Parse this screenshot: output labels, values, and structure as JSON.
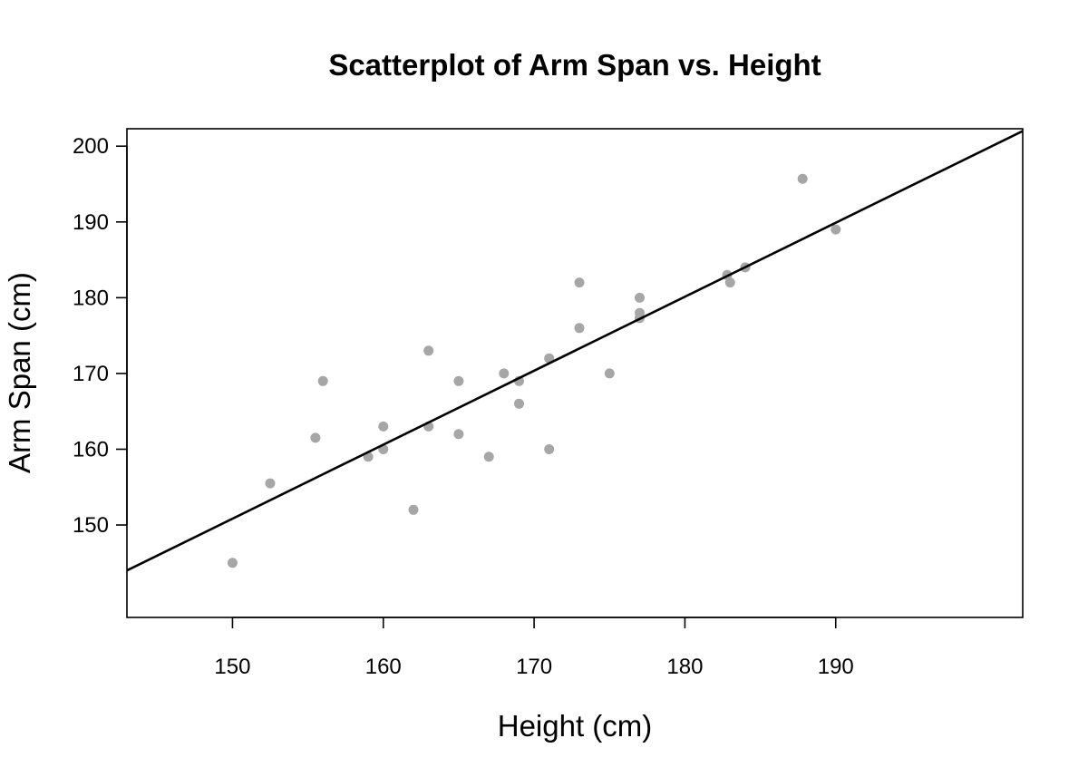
{
  "chart_data": {
    "type": "scatter",
    "title": "Scatterplot of Arm Span vs. Height",
    "xlabel": "Height (cm)",
    "ylabel": "Arm Span (cm)",
    "xlim": [
      143,
      202.4
    ],
    "ylim": [
      137.8,
      202.3
    ],
    "xticks": [
      150,
      160,
      170,
      180,
      190
    ],
    "yticks": [
      150,
      160,
      170,
      180,
      190,
      200
    ],
    "grid": false,
    "legend": "none",
    "point_color": "#a6a6a6",
    "line_color": "#000000",
    "points": [
      {
        "x": 150,
        "y": 145
      },
      {
        "x": 152.5,
        "y": 155.5
      },
      {
        "x": 155.5,
        "y": 161.5
      },
      {
        "x": 156,
        "y": 169
      },
      {
        "x": 159,
        "y": 159
      },
      {
        "x": 160,
        "y": 163
      },
      {
        "x": 160,
        "y": 160
      },
      {
        "x": 162,
        "y": 152
      },
      {
        "x": 163,
        "y": 173
      },
      {
        "x": 163,
        "y": 163
      },
      {
        "x": 165,
        "y": 169
      },
      {
        "x": 165,
        "y": 162
      },
      {
        "x": 167,
        "y": 159
      },
      {
        "x": 168,
        "y": 170
      },
      {
        "x": 169,
        "y": 169
      },
      {
        "x": 169,
        "y": 166
      },
      {
        "x": 171,
        "y": 172
      },
      {
        "x": 171,
        "y": 160
      },
      {
        "x": 173,
        "y": 182
      },
      {
        "x": 173,
        "y": 176
      },
      {
        "x": 175,
        "y": 170
      },
      {
        "x": 177,
        "y": 180
      },
      {
        "x": 177,
        "y": 178
      },
      {
        "x": 177,
        "y": 177.3
      },
      {
        "x": 182.8,
        "y": 183
      },
      {
        "x": 183,
        "y": 182
      },
      {
        "x": 184,
        "y": 184
      },
      {
        "x": 187.8,
        "y": 195.7
      },
      {
        "x": 190,
        "y": 189
      }
    ],
    "regression_line": {
      "x": [
        143,
        202.4
      ],
      "y": [
        144,
        202
      ]
    }
  }
}
